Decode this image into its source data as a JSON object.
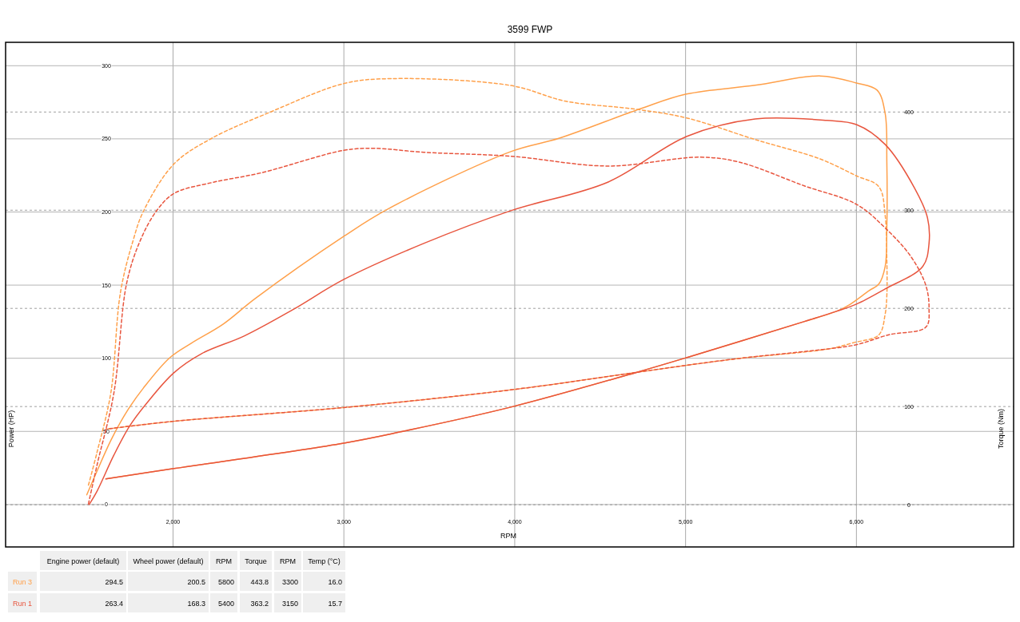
{
  "chart_data": [
    {
      "type": "line",
      "title": "3599 FWP",
      "xlabel": "RPM",
      "ylabel": "Power (HP)",
      "y2label": "Torque (Nm)",
      "xlim": [
        1020,
        6920
      ],
      "xticks": [
        {
          "value": 2000,
          "label": "2,000"
        },
        {
          "value": 3000,
          "label": "3,000"
        },
        {
          "value": 4000,
          "label": "4,000"
        },
        {
          "value": 5000,
          "label": "5,000"
        },
        {
          "value": 6000,
          "label": "6,000"
        }
      ],
      "ylim": [
        -29,
        316
      ],
      "yticks": [
        0,
        50,
        100,
        150,
        200,
        250,
        300
      ],
      "y2lim": [
        -43,
        471
      ],
      "y2ticks": [
        0,
        100,
        200,
        300,
        400
      ],
      "grid": true,
      "series": [
        {
          "color": "#ffa04a",
          "line_style": "solid",
          "x": [
            1495,
            1547,
            1640,
            1734,
            1827,
            1981,
            2107,
            2294,
            2481,
            3000,
            3257,
            3977,
            4262,
            4738,
            5005,
            5407,
            5790,
            6000,
            6121,
            6168,
            6178,
            6178,
            6168,
            6131,
            6075,
            5958,
            5883,
            5692,
            5005,
            4720,
            3977,
            3332,
            3000,
            2005,
            1607
          ],
          "values": [
            6.6,
            20.7,
            44.8,
            64.4,
            79.7,
            100.4,
            110.3,
            123.4,
            140.8,
            183.4,
            202,
            241.3,
            250.5,
            270.7,
            280.6,
            286.6,
            293,
            288.2,
            283.3,
            267.5,
            234.2,
            189.4,
            162.7,
            150.7,
            146.3,
            136.5,
            132.1,
            125,
            100.4,
            90.6,
            66.6,
            49.7,
            42,
            24.6,
            17.5
          ]
        },
        {
          "color": "#ffa04a",
          "line_style": "dashed",
          "axis": "y2",
          "x": [
            1505,
            1556,
            1636,
            1692,
            1766,
            1827,
            2005,
            2224,
            2570,
            3000,
            3276,
            3977,
            4299,
            4701,
            5005,
            5407,
            5790,
            6000,
            6131,
            6168,
            6178,
            6178,
            6168,
            6131,
            5981,
            5846,
            5313,
            5005,
            4720,
            3977,
            3000,
            2005,
            1607
          ],
          "values": [
            20,
            54,
            114,
            216,
            269,
            299,
            347,
            373,
            400,
            429,
            434,
            427,
            411,
            403,
            394,
            372,
            352,
            335,
            324,
            295,
            249,
            213,
            194,
            173,
            165,
            159,
            149,
            142,
            135,
            117,
            99,
            85,
            77
          ]
        },
        {
          "color": "#e8553e",
          "line_style": "solid",
          "x": [
            1509,
            1556,
            1654,
            1748,
            1846,
            2005,
            2168,
            2416,
            2701,
            3000,
            3467,
            3977,
            4547,
            5005,
            5407,
            5827,
            6000,
            6168,
            6341,
            6416,
            6425,
            6388,
            6168,
            6000,
            5883,
            5692,
            5005,
            4720,
            3977,
            3332,
            3000,
            2005,
            1607
          ],
          "values": [
            0,
            9.3,
            33.8,
            54,
            69.3,
            90.1,
            103.2,
            115.2,
            133.2,
            153.9,
            178.5,
            200.9,
            220.5,
            251.6,
            263.6,
            262.6,
            259.8,
            246.2,
            216.2,
            196,
            178.5,
            162.7,
            147.4,
            137,
            132.1,
            125,
            100.4,
            90.6,
            66.6,
            49.7,
            42,
            24.6,
            17.5
          ]
        },
        {
          "color": "#e8553e",
          "line_style": "dashed",
          "axis": "y2",
          "x": [
            1505,
            1556,
            1654,
            1729,
            1808,
            1902,
            2005,
            2224,
            2514,
            3000,
            3178,
            3467,
            3977,
            4547,
            5084,
            5313,
            5692,
            6000,
            6168,
            6322,
            6407,
            6425,
            6407,
            6187,
            6000,
            5846,
            5313,
            5005,
            4720,
            3977,
            3000,
            2005,
            1607
          ],
          "values": [
            1,
            41,
            114,
            226,
            269,
            299,
            317,
            328,
            338,
            361,
            363,
            359,
            355,
            345,
            354,
            349,
            325,
            306,
            282,
            252,
            223,
            200,
            181,
            173,
            163,
            159,
            149,
            142,
            135,
            117,
            99,
            85,
            77
          ]
        }
      ]
    },
    {
      "type": "other",
      "categories": [
        "Engine power (default)",
        "Wheel power (default)",
        "RPM",
        "Torque",
        "RPM",
        "Temp (°C)"
      ],
      "y_categories": [
        "Run 3",
        "Run 1"
      ],
      "cell_labels": [
        [
          "294.5",
          "200.5",
          "5800",
          "443.8",
          "3300",
          "16.0"
        ],
        [
          "263.4",
          "168.3",
          "5400",
          "363.2",
          "3150",
          "15.7"
        ]
      ]
    }
  ]
}
